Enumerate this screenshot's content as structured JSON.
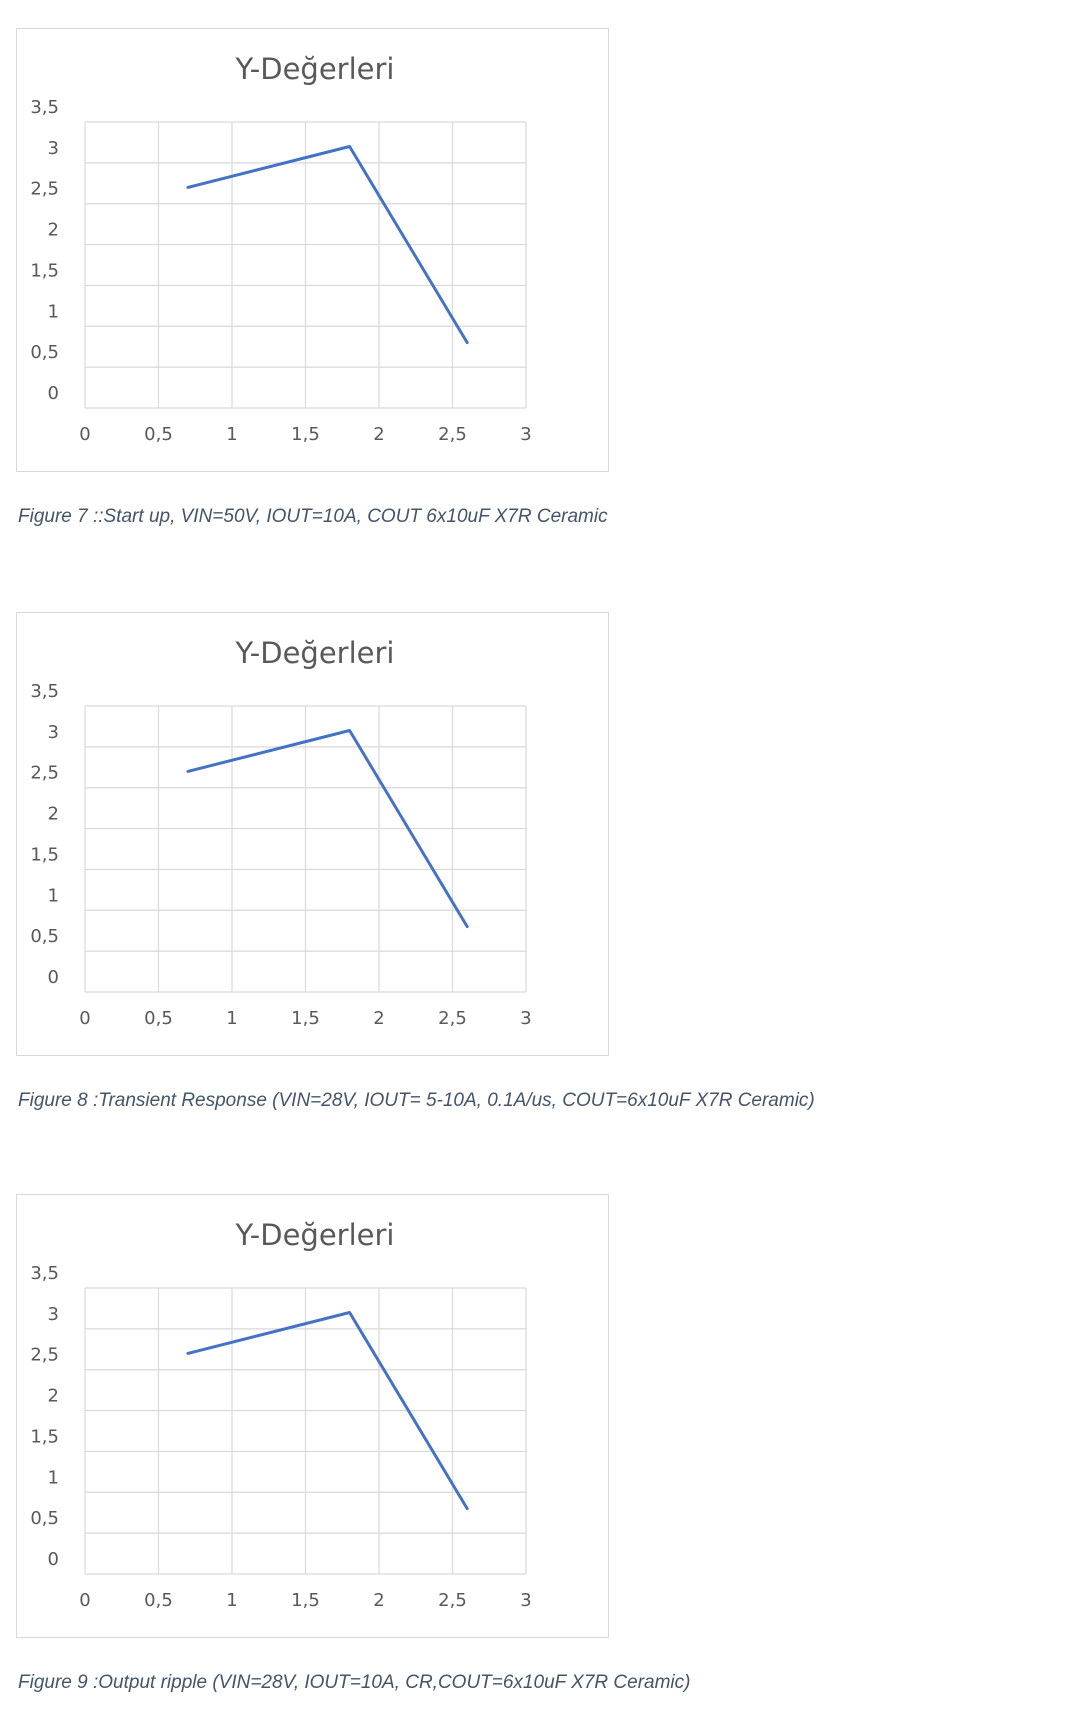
{
  "chart_data": [
    {
      "type": "line",
      "title": "Y-Değerleri",
      "xlabel": "",
      "ylabel": "",
      "xlim": [
        0,
        3
      ],
      "ylim": [
        0,
        3.5
      ],
      "x_ticks": [
        "0",
        "0,5",
        "1",
        "1,5",
        "2",
        "2,5",
        "3"
      ],
      "y_ticks": [
        "0",
        "0,5",
        "1",
        "1,5",
        "2",
        "2,5",
        "3",
        "3,5"
      ],
      "grid": true,
      "series": [
        {
          "x": [
            0.7,
            1.8,
            2.6
          ],
          "values": [
            2.7,
            3.2,
            0.8
          ],
          "color": "#4472c4"
        }
      ]
    },
    {
      "type": "line",
      "title": "Y-Değerleri",
      "xlabel": "",
      "ylabel": "",
      "xlim": [
        0,
        3
      ],
      "ylim": [
        0,
        3.5
      ],
      "x_ticks": [
        "0",
        "0,5",
        "1",
        "1,5",
        "2",
        "2,5",
        "3"
      ],
      "y_ticks": [
        "0",
        "0,5",
        "1",
        "1,5",
        "2",
        "2,5",
        "3",
        "3,5"
      ],
      "grid": true,
      "series": [
        {
          "x": [
            0.7,
            1.8,
            2.6
          ],
          "values": [
            2.7,
            3.2,
            0.8
          ],
          "color": "#4472c4"
        }
      ]
    },
    {
      "type": "line",
      "title": "Y-Değerleri",
      "xlabel": "",
      "ylabel": "",
      "xlim": [
        0,
        3
      ],
      "ylim": [
        0,
        3.5
      ],
      "x_ticks": [
        "0",
        "0,5",
        "1",
        "1,5",
        "2",
        "2,5",
        "3"
      ],
      "y_ticks": [
        "0",
        "0,5",
        "1",
        "1,5",
        "2",
        "2,5",
        "3",
        "3,5"
      ],
      "grid": true,
      "series": [
        {
          "x": [
            0.7,
            1.8,
            2.6
          ],
          "values": [
            2.7,
            3.2,
            0.8
          ],
          "color": "#4472c4"
        }
      ]
    }
  ],
  "captions": [
    "Figure 7 ::Start up, VIN=50V, IOUT=10A, COUT 6x10uF X7R Ceramic",
    "Figure 8 :Transient Response (VIN=28V, IOUT= 5-10A, 0.1A/us, COUT=6x10uF X7R Ceramic)",
    "Figure 9 :Output ripple (VIN=28V, IOUT=10A, CR,COUT=6x10uF X7R Ceramic)"
  ],
  "colors": {
    "series": "#4472c4",
    "grid": "#d9d9d9",
    "axis_text": "#595959",
    "caption": "#44546a"
  }
}
